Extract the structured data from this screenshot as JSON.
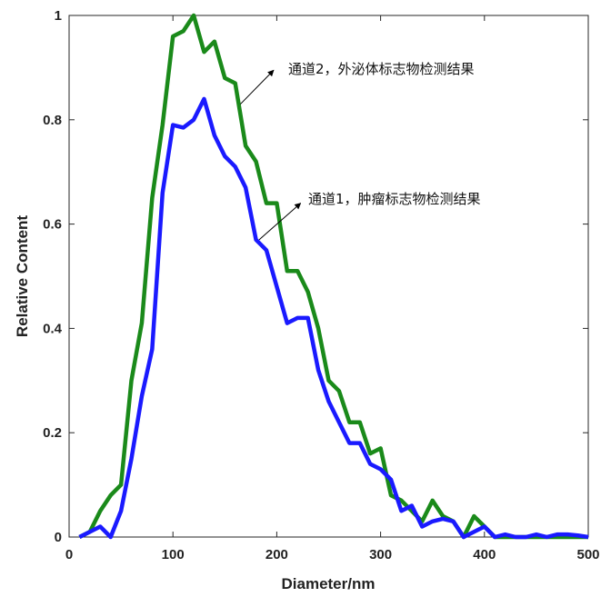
{
  "chart_data": {
    "type": "line",
    "title": "",
    "xlabel": "Diameter/nm",
    "ylabel": "Relative Content",
    "xlim": [
      0,
      500
    ],
    "ylim": [
      0,
      1
    ],
    "xticks": [
      0,
      100,
      200,
      300,
      400,
      500
    ],
    "yticks": [
      0,
      0.2,
      0.4,
      0.6,
      0.8,
      1
    ],
    "ytick_labels": [
      "0",
      "0.2",
      "0.4",
      "0.6",
      "0.8",
      "1"
    ],
    "grid": false,
    "series": [
      {
        "color": "#1a8a1a",
        "x": [
          10,
          20,
          30,
          40,
          50,
          60,
          70,
          80,
          90,
          100,
          110,
          120,
          130,
          140,
          150,
          160,
          170,
          180,
          190,
          200,
          210,
          220,
          230,
          240,
          250,
          260,
          270,
          280,
          290,
          300,
          310,
          320,
          330,
          340,
          350,
          360,
          370,
          380,
          390,
          400,
          410,
          420,
          430,
          440,
          450,
          460,
          470,
          480,
          490,
          500
        ],
        "y": [
          0.0,
          0.01,
          0.05,
          0.08,
          0.1,
          0.3,
          0.41,
          0.65,
          0.79,
          0.96,
          0.97,
          1.0,
          0.93,
          0.95,
          0.88,
          0.87,
          0.75,
          0.72,
          0.64,
          0.64,
          0.51,
          0.51,
          0.47,
          0.4,
          0.3,
          0.28,
          0.22,
          0.22,
          0.16,
          0.17,
          0.08,
          0.07,
          0.05,
          0.03,
          0.07,
          0.04,
          0.03,
          0.0,
          0.04,
          0.02,
          0.0,
          0.0,
          0.0,
          0.0,
          0.0,
          0.0,
          0.0,
          0.0,
          0.0,
          0.0
        ]
      },
      {
        "color": "#1a1aff",
        "x": [
          10,
          20,
          30,
          40,
          50,
          60,
          70,
          80,
          90,
          100,
          110,
          120,
          130,
          140,
          150,
          160,
          170,
          180,
          190,
          200,
          210,
          220,
          230,
          240,
          250,
          260,
          270,
          280,
          290,
          300,
          310,
          320,
          330,
          340,
          350,
          360,
          370,
          380,
          390,
          400,
          410,
          420,
          430,
          440,
          450,
          460,
          470,
          480,
          490,
          500
        ],
        "y": [
          0.0,
          0.01,
          0.02,
          0.0,
          0.05,
          0.15,
          0.27,
          0.36,
          0.66,
          0.79,
          0.785,
          0.8,
          0.84,
          0.77,
          0.73,
          0.71,
          0.67,
          0.57,
          0.55,
          0.48,
          0.41,
          0.42,
          0.42,
          0.32,
          0.26,
          0.22,
          0.18,
          0.18,
          0.14,
          0.13,
          0.11,
          0.05,
          0.06,
          0.02,
          0.03,
          0.035,
          0.03,
          0.0,
          0.01,
          0.02,
          0.0,
          0.005,
          0.0,
          0.0,
          0.005,
          0.0,
          0.005,
          0.005,
          0.003,
          0.0
        ]
      }
    ],
    "annotations": [
      {
        "text": "通道2，外泌体标志物检测结果",
        "arrow_from": [
          165,
          0.83
        ],
        "arrow_to": [
          197,
          0.895
        ]
      },
      {
        "text": "通道1，肿瘤标志物检测结果",
        "arrow_from": [
          183,
          0.57
        ],
        "arrow_to": [
          223,
          0.64
        ]
      }
    ]
  }
}
